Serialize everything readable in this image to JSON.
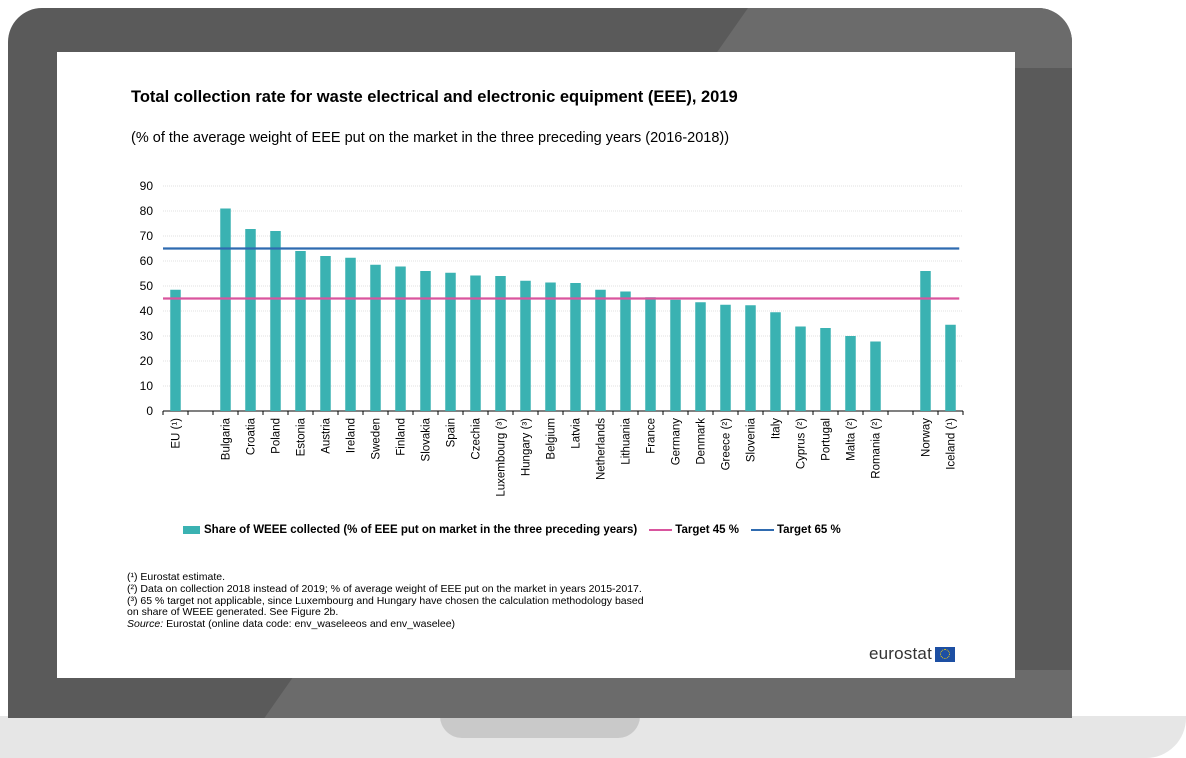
{
  "chart_data": {
    "type": "bar",
    "title": "Total collection rate for waste electrical and electronic equipment (EEE), 2019",
    "subtitle": "(% of the average weight of EEE put on the market in the three preceding years (2016-2018))",
    "categories": [
      "EU (¹)",
      "",
      "Bulgaria",
      "Croatia",
      "Poland",
      "Estonia",
      "Austria",
      "Ireland",
      "Sweden",
      "Finland",
      "Slovakia",
      "Spain",
      "Czechia",
      "Luxembourg (³)",
      "Hungary (³)",
      "Belgium",
      "Latvia",
      "Netherlands",
      "Lithuania",
      "France",
      "Germany",
      "Denmark",
      "Greece (²)",
      "Slovenia",
      "Italy",
      "Cyprus (²)",
      "Portugal",
      "Malta (²)",
      "Romania (²)",
      "",
      "Norway",
      "Iceland (¹)"
    ],
    "series": [
      {
        "name": "Share of WEEE collected (% of EEE put on market in the three preceding years)",
        "values": [
          48.5,
          null,
          81,
          72.8,
          72,
          64,
          62,
          61.3,
          58.5,
          57.8,
          56,
          55.3,
          54.2,
          54,
          52.1,
          51.4,
          51.2,
          48.5,
          47.8,
          45.5,
          44.5,
          43.5,
          42.5,
          42.3,
          39.5,
          33.8,
          33.2,
          30,
          27.8,
          null,
          56,
          34.5
        ]
      }
    ],
    "targets": [
      {
        "name": "Target 45 %",
        "value": 45,
        "color": "#d9559e"
      },
      {
        "name": "Target 65 %",
        "value": 65,
        "color": "#2f6bb0"
      }
    ],
    "ylim": [
      0,
      90
    ],
    "yticks": [
      0,
      10,
      20,
      30,
      40,
      50,
      60,
      70,
      80,
      90
    ],
    "grid": true,
    "bar_color": "#3ab2b2",
    "legend_position": "bottom"
  },
  "notes": {
    "n1": "(¹) Eurostat estimate.",
    "n2": "(²) Data on collection 2018 instead of 2019; % of average weight of EEE put on the market in years 2015-2017.",
    "n3a": "(³) 65 % target not applicable, since Luxembourg and Hungary have chosen the calculation methodology based",
    "n3b": "on share of WEEE generated. See Figure 2b.",
    "source_label": "Source:",
    "source_text": " Eurostat (online data code: env_waseleeos and env_waselee)"
  },
  "logo": {
    "text": "eurostat",
    "icon": "eu-flag-icon"
  }
}
